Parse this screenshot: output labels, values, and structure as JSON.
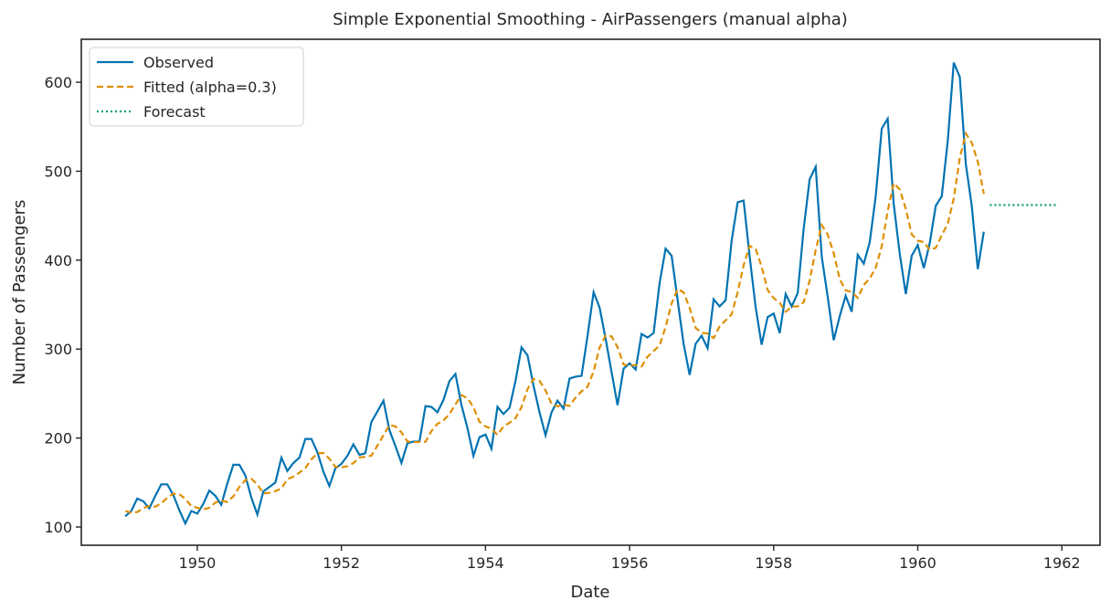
{
  "chart_data": {
    "type": "line",
    "title": "Simple Exponential Smoothing - AirPassengers (manual alpha)",
    "xlabel": "Date",
    "ylabel": "Number of Passengers",
    "xlim": [
      1948.39,
      1962.53
    ],
    "ylim": [
      79.5,
      648.3
    ],
    "x_ticks": [
      "1950",
      "1952",
      "1954",
      "1956",
      "1958",
      "1960",
      "1962"
    ],
    "y_ticks": [
      "100",
      "200",
      "300",
      "400",
      "500",
      "600"
    ],
    "grid": false,
    "legend_placement": "top-left",
    "alpha": 0.3,
    "start": "1949-01",
    "frequency": "monthly",
    "series": [
      {
        "name": "Observed",
        "color": "#0173b2",
        "style": "solid",
        "values": [
          112,
          118,
          132,
          129,
          121,
          135,
          148,
          148,
          136,
          119,
          104,
          118,
          115,
          126,
          141,
          135,
          125,
          149,
          170,
          170,
          158,
          133,
          114,
          140,
          145,
          150,
          178,
          163,
          172,
          178,
          199,
          199,
          184,
          162,
          146,
          166,
          171,
          180,
          193,
          181,
          183,
          218,
          230,
          242,
          209,
          191,
          172,
          194,
          196,
          196,
          236,
          235,
          229,
          243,
          264,
          272,
          237,
          211,
          180,
          201,
          204,
          188,
          235,
          227,
          234,
          264,
          302,
          293,
          259,
          229,
          203,
          229,
          242,
          233,
          267,
          269,
          270,
          315,
          364,
          347,
          312,
          274,
          237,
          278,
          284,
          277,
          317,
          313,
          318,
          374,
          413,
          405,
          355,
          306,
          271,
          306,
          315,
          301,
          356,
          348,
          355,
          422,
          465,
          467,
          404,
          347,
          305,
          336,
          340,
          318,
          362,
          348,
          363,
          435,
          491,
          505,
          404,
          359,
          310,
          337,
          360,
          342,
          406,
          396,
          420,
          472,
          548,
          559,
          463,
          407,
          362,
          405,
          417,
          391,
          419,
          461,
          472,
          535,
          622,
          606,
          508,
          461,
          390,
          432
        ]
      },
      {
        "name": "Fitted (alpha=0.3)",
        "color": "#de8f05",
        "style": "dashed",
        "initial_level": 118
      },
      {
        "name": "Forecast",
        "color": "#029e73",
        "style": "dotted",
        "start": "1961-01",
        "months": 12,
        "value": 462
      }
    ]
  }
}
